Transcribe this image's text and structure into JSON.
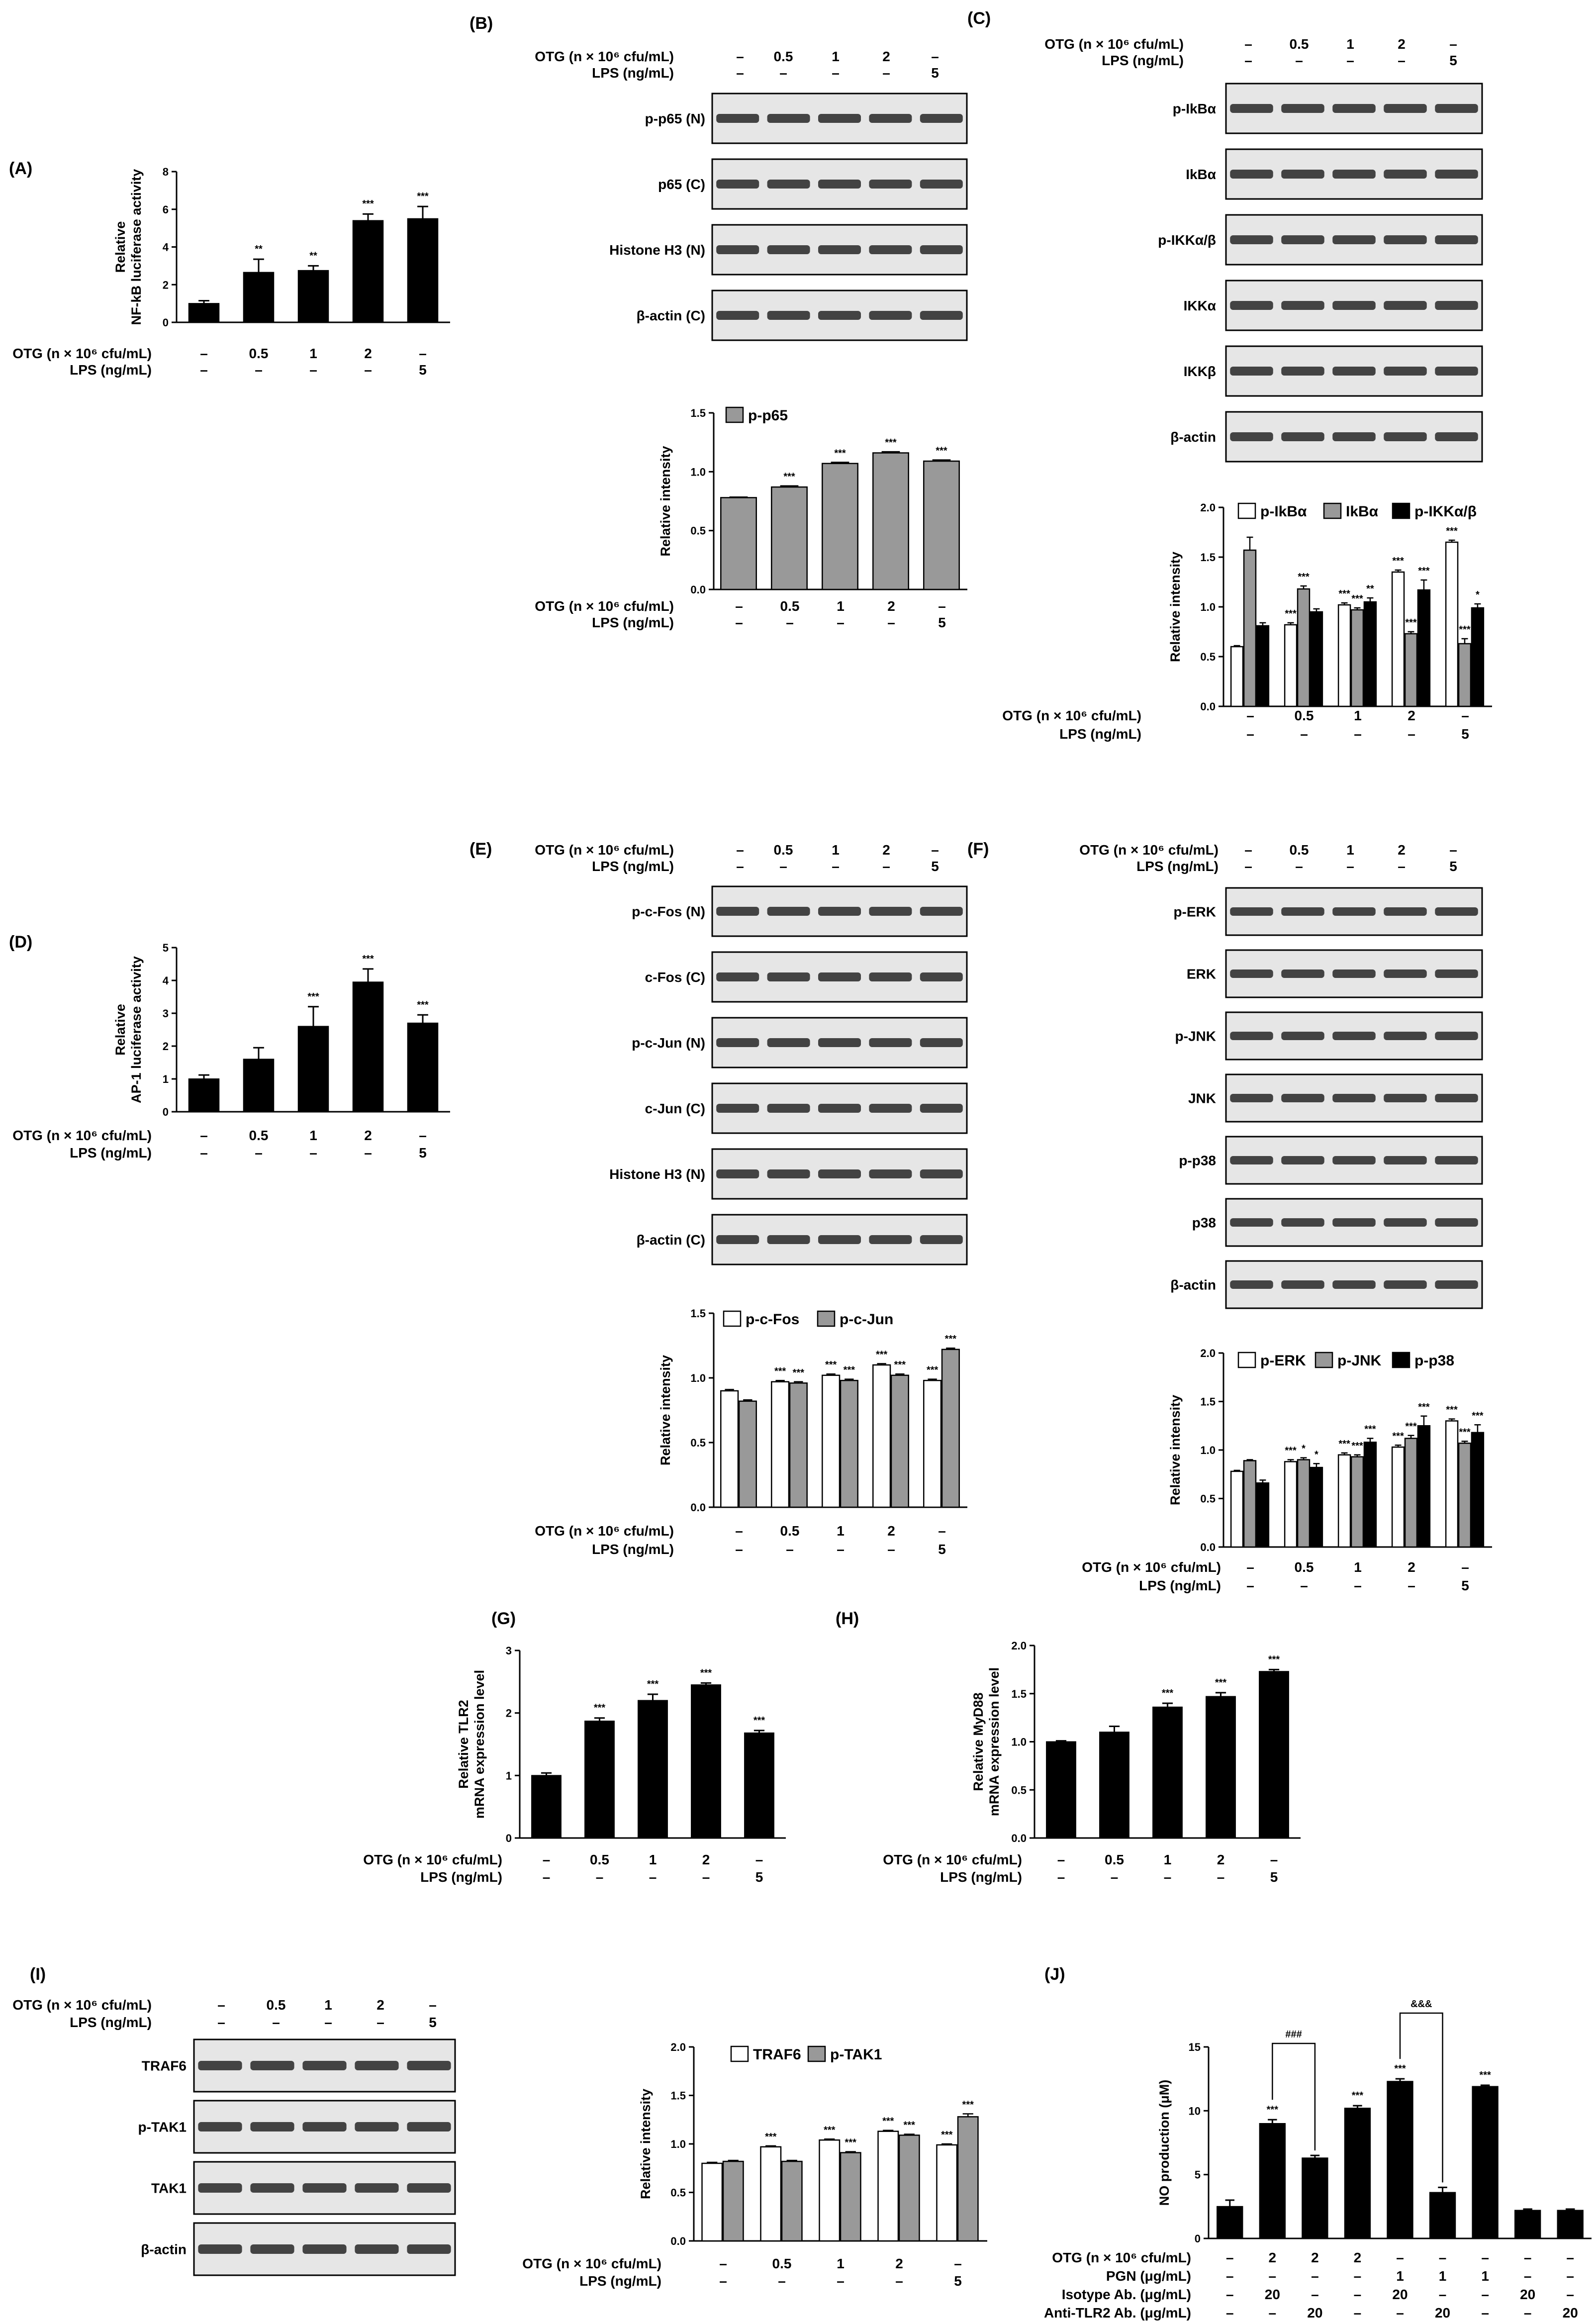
{
  "panel_labels": [
    "(A)",
    "(B)",
    "(C)",
    "(D)",
    "(E)",
    "(F)",
    "(G)",
    "(H)",
    "(I)",
    "(J)"
  ],
  "condition_labels": {
    "otg": "OTG (n × 10⁶ cfu/mL)",
    "lps": "LPS (ng/mL)",
    "pgn": "PGN (μg/mL)",
    "isotype": "Isotype Ab. (μg/mL)",
    "anti_tlr2": "Anti-TLR2 Ab. (μg/mL)"
  },
  "condition_values": {
    "otg": [
      "–",
      "0.5",
      "1",
      "2",
      "–"
    ],
    "lps": [
      "–",
      "–",
      "–",
      "–",
      "5"
    ]
  },
  "panel_J_conditions": {
    "otg": [
      "–",
      "2",
      "2",
      "2",
      "–",
      "–",
      "–",
      "–",
      "–"
    ],
    "pgn": [
      "–",
      "–",
      "–",
      "–",
      "1",
      "1",
      "1",
      "–",
      "–"
    ],
    "isotype": [
      "–",
      "20",
      "–",
      "–",
      "20",
      "–",
      "–",
      "20",
      "–"
    ],
    "anti_tlr2": [
      "–",
      "–",
      "20",
      "–",
      "–",
      "20",
      "–",
      "–",
      "20"
    ]
  },
  "blots": {
    "B": [
      "p-p65 (N)",
      "p65 (C)",
      "Histone H3 (N)",
      "β-actin (C)"
    ],
    "C": [
      "p-IkBα",
      "IkBα",
      "p-IKKα/β",
      "IKKα",
      "IKKβ",
      "β-actin"
    ],
    "E": [
      "p-c-Fos (N)",
      "c-Fos (C)",
      "p-c-Jun (N)",
      "c-Jun (C)",
      "Histone H3 (N)",
      "β-actin (C)"
    ],
    "F": [
      "p-ERK",
      "ERK",
      "p-JNK",
      "JNK",
      "p-p38",
      "p38",
      "β-actin"
    ],
    "I": [
      "TRAF6",
      "p-TAK1",
      "TAK1",
      "β-actin"
    ]
  },
  "chart_data": [
    {
      "panel": "A",
      "type": "bar",
      "ylabel": [
        "Relative",
        "NF-kB luciferase activity"
      ],
      "ylim": [
        0,
        8
      ],
      "yticks": [
        0,
        2,
        4,
        6,
        8
      ],
      "values": [
        1.0,
        2.65,
        2.75,
        5.4,
        5.5
      ],
      "errors": [
        0.15,
        0.7,
        0.25,
        0.35,
        0.65
      ],
      "stars": [
        "",
        "**",
        "**",
        "***",
        "***"
      ]
    },
    {
      "panel": "B",
      "type": "bar",
      "ylabel": [
        "Relative intensity"
      ],
      "ylim": [
        0,
        1.5
      ],
      "yticks": [
        0.0,
        0.5,
        1.0,
        1.5
      ],
      "legend": [
        "p-p65"
      ],
      "series": [
        {
          "name": "p-p65",
          "values": [
            0.78,
            0.87,
            1.07,
            1.16,
            1.09
          ],
          "errors": [
            0.005,
            0.01,
            0.01,
            0.01,
            0.01
          ]
        }
      ],
      "stars": [
        [
          ""
        ],
        [
          "***"
        ],
        [
          "***"
        ],
        [
          "***"
        ],
        [
          "***"
        ]
      ]
    },
    {
      "panel": "C",
      "type": "bar",
      "ylabel": [
        "Relative intensity"
      ],
      "ylim": [
        0,
        2.0
      ],
      "yticks": [
        0.0,
        0.5,
        1.0,
        1.5,
        2.0
      ],
      "legend": [
        "p-IkBα",
        "IkBα",
        "p-IKKα/β"
      ],
      "series": [
        {
          "name": "p-IkBα",
          "values": [
            0.6,
            0.82,
            1.02,
            1.35,
            1.65
          ],
          "errors": [
            0.01,
            0.02,
            0.02,
            0.02,
            0.02
          ]
        },
        {
          "name": "IkBα",
          "values": [
            1.57,
            1.18,
            0.97,
            0.73,
            0.63
          ],
          "errors": [
            0.13,
            0.03,
            0.02,
            0.02,
            0.05
          ]
        },
        {
          "name": "p-IKKα/β",
          "values": [
            0.81,
            0.95,
            1.05,
            1.17,
            0.99
          ],
          "errors": [
            0.03,
            0.03,
            0.04,
            0.1,
            0.04
          ]
        }
      ],
      "stars": [
        [
          "",
          "",
          ""
        ],
        [
          "***",
          "***",
          ""
        ],
        [
          "***",
          "***",
          "**"
        ],
        [
          "***",
          "***",
          "***"
        ],
        [
          "***",
          "***",
          "*"
        ]
      ]
    },
    {
      "panel": "D",
      "type": "bar",
      "ylabel": [
        "Relative",
        "AP-1 luciferase activity"
      ],
      "ylim": [
        0,
        5
      ],
      "yticks": [
        0,
        1,
        2,
        3,
        4,
        5
      ],
      "values": [
        1.0,
        1.6,
        2.6,
        3.95,
        2.7
      ],
      "errors": [
        0.12,
        0.35,
        0.6,
        0.4,
        0.25
      ],
      "stars": [
        "",
        "",
        "***",
        "***",
        "***"
      ]
    },
    {
      "panel": "E",
      "type": "bar",
      "ylabel": [
        "Relative intensity"
      ],
      "ylim": [
        0,
        1.5
      ],
      "yticks": [
        0.0,
        0.5,
        1.0,
        1.5
      ],
      "legend": [
        "p-c-Fos",
        "p-c-Jun"
      ],
      "series": [
        {
          "name": "p-c-Fos",
          "values": [
            0.9,
            0.97,
            1.02,
            1.1,
            0.98
          ],
          "errors": [
            0.01,
            0.01,
            0.01,
            0.01,
            0.01
          ]
        },
        {
          "name": "p-c-Jun",
          "values": [
            0.82,
            0.96,
            0.98,
            1.02,
            1.22
          ],
          "errors": [
            0.01,
            0.01,
            0.01,
            0.01,
            0.01
          ]
        }
      ],
      "stars": [
        [
          "",
          ""
        ],
        [
          "***",
          "***"
        ],
        [
          "***",
          "***"
        ],
        [
          "***",
          "***"
        ],
        [
          "***",
          "***"
        ]
      ]
    },
    {
      "panel": "F",
      "type": "bar",
      "ylabel": [
        "Relative intensity"
      ],
      "ylim": [
        0,
        2.0
      ],
      "yticks": [
        0.0,
        0.5,
        1.0,
        1.5,
        2.0
      ],
      "legend": [
        "p-ERK",
        "p-JNK",
        "p-p38"
      ],
      "series": [
        {
          "name": "p-ERK",
          "values": [
            0.78,
            0.88,
            0.95,
            1.03,
            1.3
          ],
          "errors": [
            0.01,
            0.02,
            0.02,
            0.02,
            0.02
          ]
        },
        {
          "name": "p-JNK",
          "values": [
            0.89,
            0.9,
            0.93,
            1.12,
            1.07
          ],
          "errors": [
            0.01,
            0.02,
            0.02,
            0.03,
            0.02
          ]
        },
        {
          "name": "p-p38",
          "values": [
            0.66,
            0.82,
            1.08,
            1.25,
            1.18
          ],
          "errors": [
            0.03,
            0.04,
            0.04,
            0.1,
            0.08
          ]
        }
      ],
      "stars": [
        [
          "",
          "",
          ""
        ],
        [
          "***",
          "*",
          "*"
        ],
        [
          "***",
          "***",
          "***"
        ],
        [
          "***",
          "***",
          "***"
        ],
        [
          "***",
          "***",
          "***"
        ]
      ]
    },
    {
      "panel": "G",
      "type": "bar",
      "ylabel": [
        "Relative TLR2",
        "mRNA expression level"
      ],
      "ylim": [
        0,
        3
      ],
      "yticks": [
        0,
        1,
        2,
        3
      ],
      "values": [
        1.0,
        1.87,
        2.2,
        2.45,
        1.68
      ],
      "errors": [
        0.04,
        0.05,
        0.1,
        0.03,
        0.04
      ],
      "stars": [
        "",
        "***",
        "***",
        "***",
        "***"
      ]
    },
    {
      "panel": "H",
      "type": "bar",
      "ylabel": [
        "Relative MyD88",
        "mRNA expression level"
      ],
      "ylim": [
        0,
        2.0
      ],
      "yticks": [
        0.0,
        0.5,
        1.0,
        1.5,
        2.0
      ],
      "values": [
        1.0,
        1.1,
        1.36,
        1.47,
        1.73
      ],
      "errors": [
        0.01,
        0.06,
        0.04,
        0.04,
        0.02
      ],
      "stars": [
        "",
        "",
        "***",
        "***",
        "***"
      ]
    },
    {
      "panel": "I",
      "type": "bar",
      "ylabel": [
        "Relative intensity"
      ],
      "ylim": [
        0,
        2.0
      ],
      "yticks": [
        0.0,
        0.5,
        1.0,
        1.5,
        2.0
      ],
      "legend": [
        "TRAF6",
        "p-TAK1"
      ],
      "series": [
        {
          "name": "TRAF6",
          "values": [
            0.8,
            0.97,
            1.04,
            1.13,
            0.99
          ],
          "errors": [
            0.01,
            0.01,
            0.01,
            0.01,
            0.01
          ]
        },
        {
          "name": "p-TAK1",
          "values": [
            0.82,
            0.82,
            0.91,
            1.09,
            1.28
          ],
          "errors": [
            0.01,
            0.01,
            0.01,
            0.01,
            0.03
          ]
        }
      ],
      "stars": [
        [
          "",
          ""
        ],
        [
          "***",
          ""
        ],
        [
          "***",
          "***"
        ],
        [
          "***",
          "***"
        ],
        [
          "***",
          "***"
        ]
      ]
    },
    {
      "panel": "J",
      "type": "bar",
      "ylabel": [
        "NO production (μM)"
      ],
      "ylim": [
        0,
        15
      ],
      "yticks": [
        0,
        5,
        10,
        15
      ],
      "values": [
        2.5,
        9.0,
        6.3,
        10.2,
        12.3,
        3.6,
        11.9,
        2.2,
        2.2
      ],
      "errors": [
        0.5,
        0.3,
        0.2,
        0.2,
        0.2,
        0.4,
        0.1,
        0.1,
        0.1
      ],
      "stars": [
        "",
        "***",
        "",
        "***",
        "***",
        "",
        "***",
        "",
        ""
      ],
      "brackets": [
        {
          "from": 1,
          "to": 2,
          "label": "###"
        },
        {
          "from": 4,
          "to": 5,
          "label": "&&&"
        }
      ]
    }
  ]
}
